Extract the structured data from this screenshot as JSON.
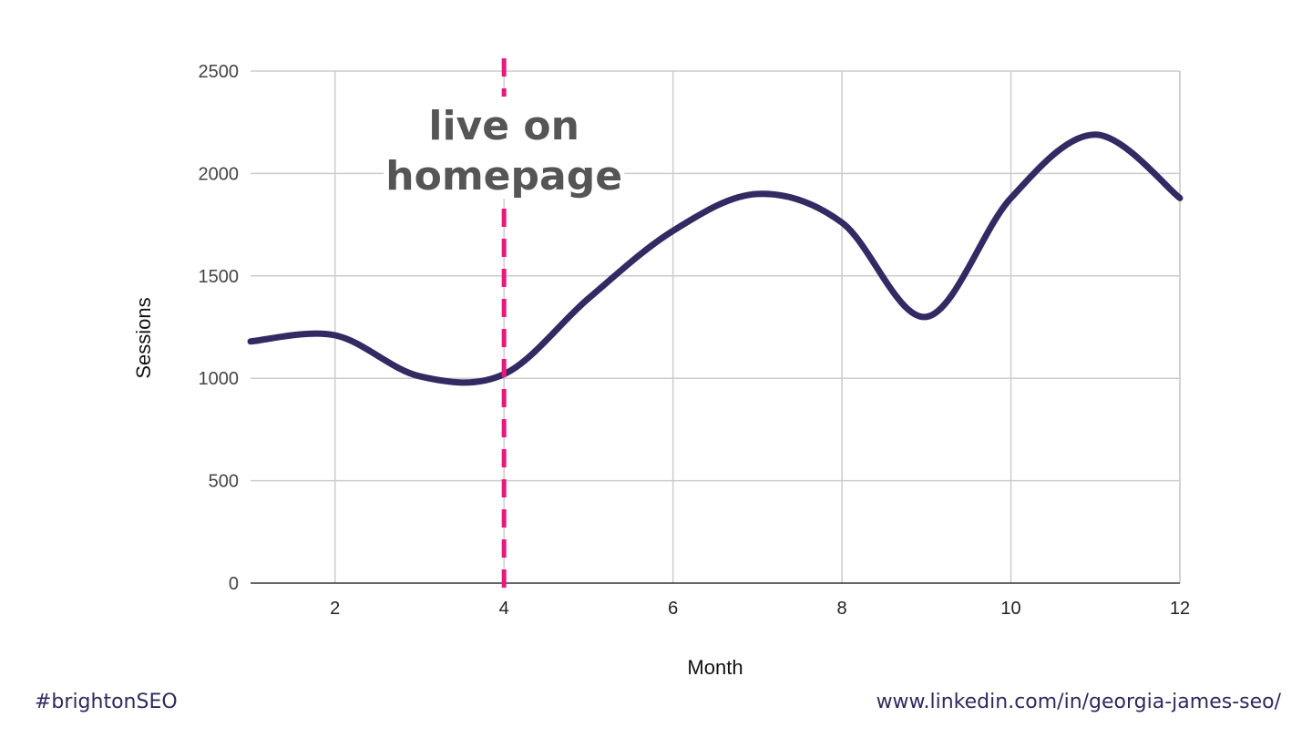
{
  "chart_data": {
    "type": "line",
    "xlabel": "Month",
    "ylabel": "Sessions",
    "xlim": [
      1,
      12
    ],
    "ylim": [
      0,
      2500
    ],
    "x_ticks": [
      2,
      4,
      6,
      8,
      10,
      12
    ],
    "y_ticks": [
      0,
      500,
      1000,
      1500,
      2000,
      2500
    ],
    "grid": true,
    "series": [
      {
        "x": [
          1,
          2,
          3,
          4,
          5,
          6,
          7,
          8,
          9,
          10,
          11,
          12
        ],
        "values": [
          1180,
          1210,
          1010,
          1020,
          1390,
          1720,
          1900,
          1760,
          1300,
          1880,
          2190,
          1880
        ],
        "color": "#332a63"
      }
    ],
    "annotation": {
      "text_line1": "live on",
      "text_line2": "homepage",
      "x": 4,
      "color": "#e8197d",
      "text_color": "#555555"
    }
  },
  "footer": {
    "hashtag": "#brightonSEO",
    "url": "www.linkedin.com/in/georgia-james-seo/"
  }
}
